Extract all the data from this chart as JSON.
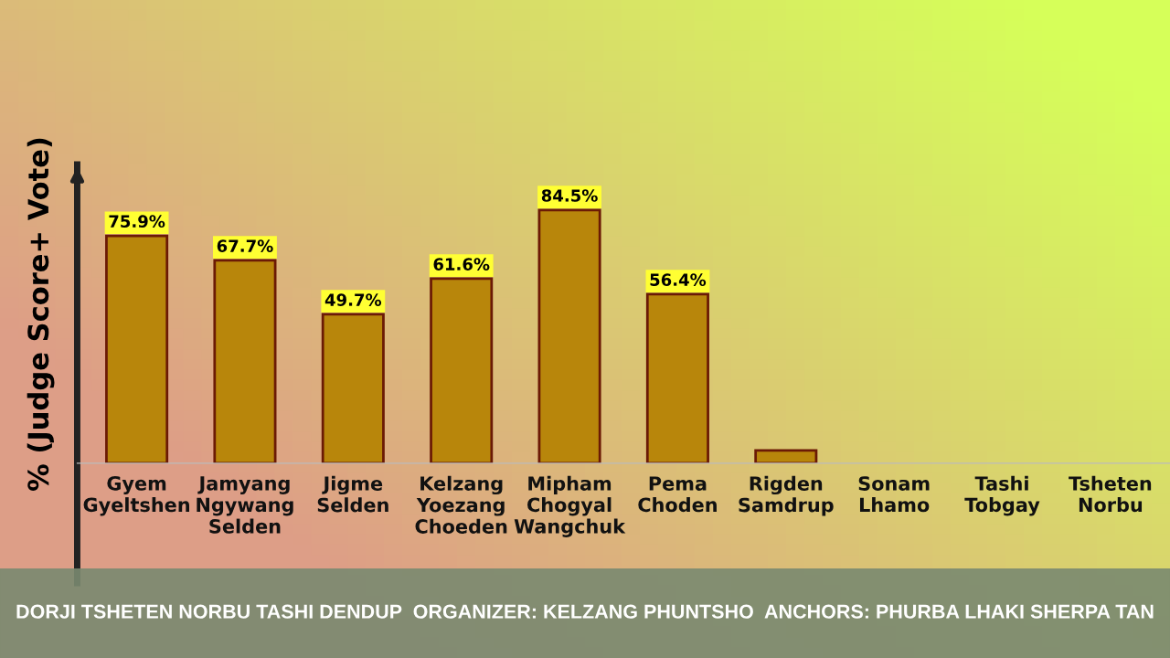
{
  "chart_data": {
    "type": "bar",
    "ylabel": "% (Judge Score+ Vote)",
    "categories": [
      "Gyem\nGyeltshen",
      "Jamyang\nNgywang\nSelden",
      "Jigme\nSelden",
      "Kelzang\nYoezang\nChoeden",
      "Mipham\nChogyal\nWangchuk",
      "Pema\nChoden",
      "Rigden\nSamdrup",
      "Sonam\nLhamo",
      "Tashi\nTobgay",
      "Tsheten\nNorbu"
    ],
    "values": [
      75.9,
      67.7,
      49.7,
      61.6,
      84.5,
      56.4,
      4.3,
      null,
      null,
      null
    ],
    "value_labels": [
      "75.9%",
      "67.7%",
      "49.7%",
      "61.6%",
      "84.5%",
      "56.4%",
      null,
      null,
      null,
      null
    ],
    "color": "#b8860b",
    "grid": false,
    "annotations": [
      "DORJI TSHETEN NORBU TASHI DENDUP  ORGANIZER: KELZANG PHUNTSHO  ANCHORS: PHURBA LHAKI SHERPA TAN"
    ]
  }
}
